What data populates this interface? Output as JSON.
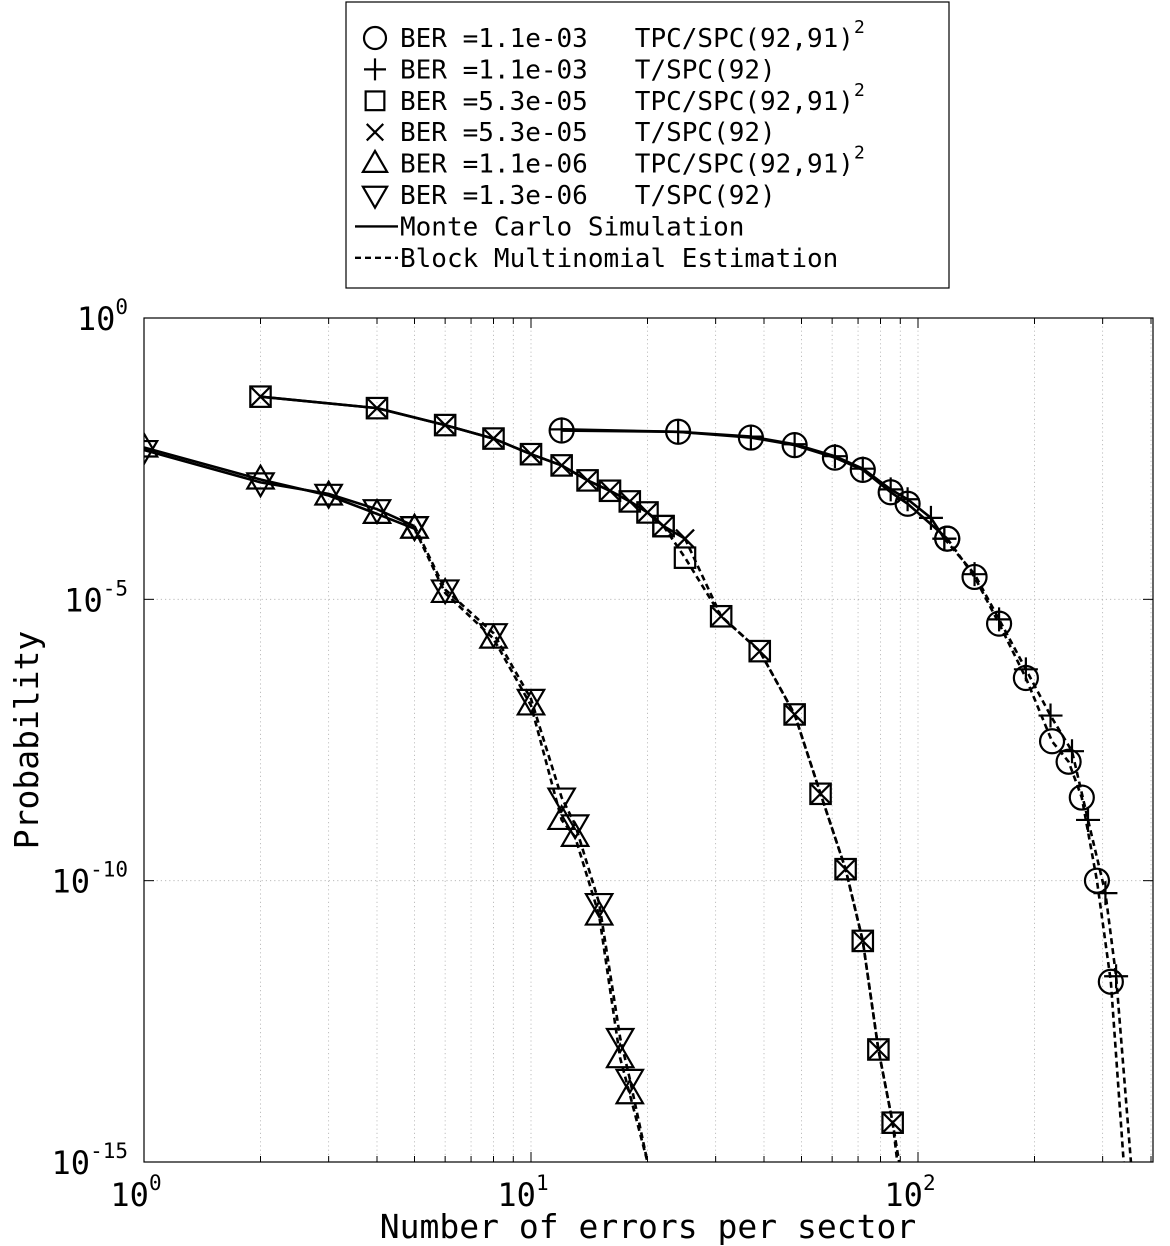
{
  "chart_data": {
    "type": "line",
    "xlabel": "Number of errors per sector",
    "ylabel": "Probability",
    "xscale": "log",
    "yscale": "log",
    "xlim": [
      1,
      430
    ],
    "ylim": [
      1e-15,
      1
    ],
    "grid": true,
    "legend_position": "top-center",
    "x_ticks": [
      {
        "base": "10",
        "exp": "0",
        "value": 1
      },
      {
        "base": "10",
        "exp": "1",
        "value": 10
      },
      {
        "base": "10",
        "exp": "2",
        "value": 100
      }
    ],
    "y_ticks": [
      {
        "base": "10",
        "exp": "0",
        "value": 1
      },
      {
        "base": "10",
        "exp": "-5",
        "value": 1e-05
      },
      {
        "base": "10",
        "exp": "-10",
        "value": 1e-10
      },
      {
        "base": "10",
        "exp": "-15",
        "value": 1e-15
      }
    ],
    "legend": [
      {
        "marker": "circle",
        "line": "none",
        "text": "BER =1.1e-03   TPC/SPC(92,91)",
        "sup": "2"
      },
      {
        "marker": "plus",
        "line": "none",
        "text": "BER =1.1e-03   T/SPC(92)",
        "sup": ""
      },
      {
        "marker": "square",
        "line": "none",
        "text": "BER =5.3e-05   TPC/SPC(92,91)",
        "sup": "2"
      },
      {
        "marker": "x",
        "line": "none",
        "text": "BER =5.3e-05   T/SPC(92)",
        "sup": ""
      },
      {
        "marker": "triangle-up",
        "line": "none",
        "text": "BER =1.1e-06   TPC/SPC(92,91)",
        "sup": "2"
      },
      {
        "marker": "triangle-down",
        "line": "none",
        "text": "BER =1.3e-06   T/SPC(92)",
        "sup": ""
      },
      {
        "marker": "none",
        "line": "solid",
        "text": "Monte Carlo Simulation",
        "sup": ""
      },
      {
        "marker": "none",
        "line": "dashed",
        "text": "Block Multinomial Estimation",
        "sup": ""
      }
    ],
    "series": [
      {
        "name": "BER =1.1e-03   TPC/SPC(92,91)^2",
        "marker": "circle",
        "mc": {
          "x": [
            12,
            24,
            37,
            48,
            61,
            72,
            85,
            94,
            119
          ],
          "y": [
            0.01,
            0.0095,
            0.0075,
            0.0055,
            0.0033,
            0.002,
            0.0008,
            0.0005,
            0.00012
          ]
        },
        "bme": {
          "x": [
            119,
            140,
            162,
            190,
            222,
            245,
            265,
            290,
            315,
            340,
            370
          ],
          "y": [
            0.00012,
            2.5e-05,
            3.7e-06,
            4e-07,
            3e-08,
            1.3e-08,
            3e-09,
            1e-10,
            1.6e-12,
            1e-15,
            1e-16
          ]
        }
      },
      {
        "name": "BER =1.1e-03   T/SPC(92)",
        "marker": "plus",
        "mc": {
          "x": [
            12,
            24,
            37,
            48,
            61,
            72,
            85,
            94,
            108,
            117
          ],
          "y": [
            0.0105,
            0.0095,
            0.0078,
            0.0057,
            0.0035,
            0.0021,
            0.0009,
            0.0006,
            0.00028,
            0.00012
          ]
        },
        "bme": {
          "x": [
            117,
            140,
            162,
            190,
            220,
            250,
            275,
            305,
            325,
            355
          ],
          "y": [
            0.00012,
            2.8e-05,
            4.4e-06,
            5.7e-07,
            8.6e-08,
            2e-08,
            1.2e-09,
            6e-11,
            2e-12,
            1e-15
          ]
        }
      },
      {
        "name": "BER =5.3e-05   TPC/SPC(92,91)^2",
        "marker": "square",
        "mc": {
          "x": [
            2,
            4,
            6,
            8,
            10,
            12,
            14,
            16,
            18,
            20,
            22
          ],
          "y": [
            0.04,
            0.025,
            0.0125,
            0.0072,
            0.0038,
            0.0024,
            0.0013,
            0.00085,
            0.00055,
            0.00035,
            0.0002
          ]
        },
        "bme": {
          "x": [
            22,
            25,
            31,
            39,
            48,
            56,
            65,
            72,
            79,
            86,
            92,
            100
          ],
          "y": [
            0.0002,
            5.5e-05,
            5e-06,
            1.2e-06,
            9e-08,
            3.5e-09,
            1.6e-10,
            8.5e-12,
            1e-13,
            5e-15,
            3e-16,
            1e-17
          ]
        }
      },
      {
        "name": "BER =5.3e-05   T/SPC(92)",
        "marker": "x",
        "mc": {
          "x": [
            2,
            4,
            6,
            8,
            10,
            12,
            14,
            16,
            18,
            20,
            22,
            25
          ],
          "y": [
            0.04,
            0.025,
            0.0125,
            0.0072,
            0.0038,
            0.0024,
            0.0013,
            0.00085,
            0.00055,
            0.00035,
            0.0002,
            0.00012
          ]
        },
        "bme": {
          "x": [
            25,
            31,
            39,
            48,
            56,
            65,
            72,
            79,
            86,
            92
          ],
          "y": [
            0.00012,
            5e-06,
            1.2e-06,
            9e-08,
            3.5e-09,
            1.6e-10,
            8.5e-12,
            1e-13,
            5e-15,
            1e-16
          ]
        }
      },
      {
        "name": "BER =1.1e-06   TPC/SPC(92,91)^2",
        "marker": "triangle-up",
        "mc": {
          "x": [
            1,
            2,
            3,
            4,
            5
          ],
          "y": [
            0.005,
            0.00135,
            0.0007,
            0.00033,
            0.00018
          ]
        },
        "bme": {
          "x": [
            5,
            6,
            8,
            10,
            12,
            13,
            15,
            17,
            18,
            20,
            22
          ],
          "y": [
            0.00018,
            1.3e-05,
            2e-06,
            1.3e-07,
            1.2e-09,
            6e-10,
            2.4e-11,
            7e-14,
            1.6e-14,
            1e-15,
            2e-16
          ]
        }
      },
      {
        "name": "BER =1.3e-06   T/SPC(92)",
        "marker": "triangle-down",
        "mc": {
          "x": [
            1,
            2,
            3,
            4,
            5
          ],
          "y": [
            0.0045,
            0.0012,
            0.00075,
            0.0004,
            0.0002
          ]
        },
        "bme": {
          "x": [
            5,
            6,
            8,
            10,
            12,
            13,
            15,
            17,
            18,
            20
          ],
          "y": [
            0.0002,
            1.5e-05,
            2.5e-06,
            1.7e-07,
            3e-09,
            1e-09,
            4e-11,
            1.6e-13,
            3e-14,
            1e-15
          ]
        }
      }
    ]
  }
}
